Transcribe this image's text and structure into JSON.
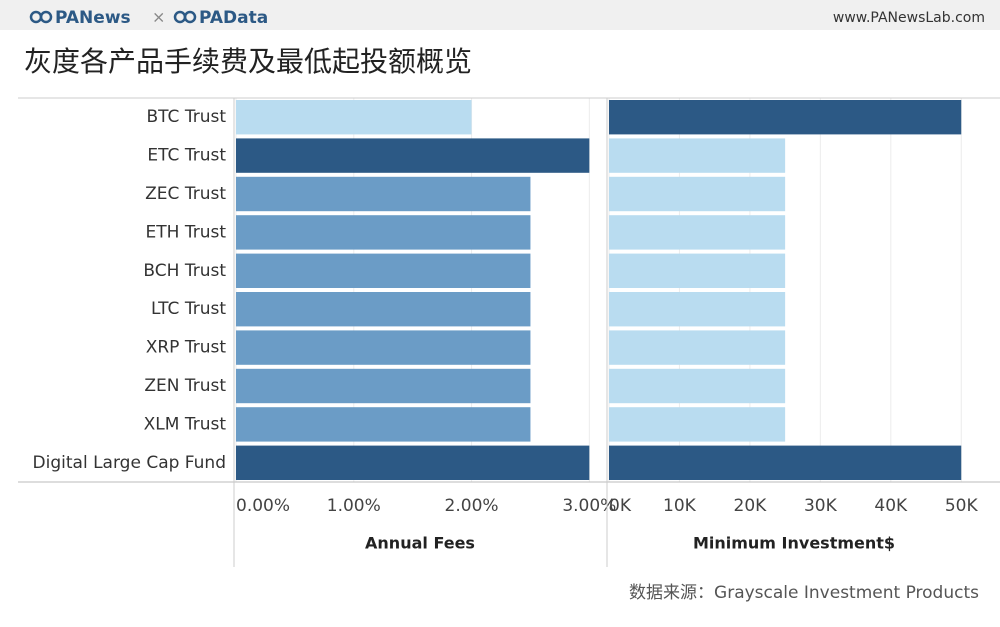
{
  "header": {
    "brand_left": "PANews",
    "separator": "×",
    "brand_right": "PAData",
    "url": "www.PANewsLab.com"
  },
  "title": "灰度各产品手续费及最低起投额概览",
  "source": "数据来源：Grayscale Investment Products",
  "chart_data": {
    "type": "bar",
    "orientation": "horizontal",
    "categories": [
      "BTC Trust",
      "ETC Trust",
      "ZEC Trust",
      "ETH Trust",
      "BCH Trust",
      "LTC Trust",
      "XRP Trust",
      "ZEN Trust",
      "XLM Trust",
      "Digital Large Cap Fund"
    ],
    "grid": true,
    "series": [
      {
        "name": "Annual Fees",
        "values": [
          2.0,
          3.0,
          2.5,
          2.5,
          2.5,
          2.5,
          2.5,
          2.5,
          2.5,
          3.0
        ],
        "colors": [
          "#b9dcf0",
          "#2c5985",
          "#6b9cc6",
          "#6b9cc6",
          "#6b9cc6",
          "#6b9cc6",
          "#6b9cc6",
          "#6b9cc6",
          "#6b9cc6",
          "#2c5985"
        ],
        "xlim": [
          0,
          3.15
        ],
        "xticks": [
          {
            "value": 0,
            "label": "0.00%"
          },
          {
            "value": 1,
            "label": "1.00%"
          },
          {
            "value": 2,
            "label": "2.00%"
          },
          {
            "value": 3,
            "label": "3.00%"
          }
        ]
      },
      {
        "name": "Minimum Investment$",
        "values": [
          50000,
          25000,
          25000,
          25000,
          25000,
          25000,
          25000,
          25000,
          25000,
          50000
        ],
        "colors": [
          "#2c5985",
          "#b9dcf0",
          "#b9dcf0",
          "#b9dcf0",
          "#b9dcf0",
          "#b9dcf0",
          "#b9dcf0",
          "#b9dcf0",
          "#b9dcf0",
          "#2c5985"
        ],
        "xlim": [
          0,
          55500
        ],
        "xticks": [
          {
            "value": 0,
            "label": "0K"
          },
          {
            "value": 10000,
            "label": "10K"
          },
          {
            "value": 20000,
            "label": "20K"
          },
          {
            "value": 30000,
            "label": "30K"
          },
          {
            "value": 40000,
            "label": "40K"
          },
          {
            "value": 50000,
            "label": "50K"
          }
        ]
      }
    ]
  }
}
